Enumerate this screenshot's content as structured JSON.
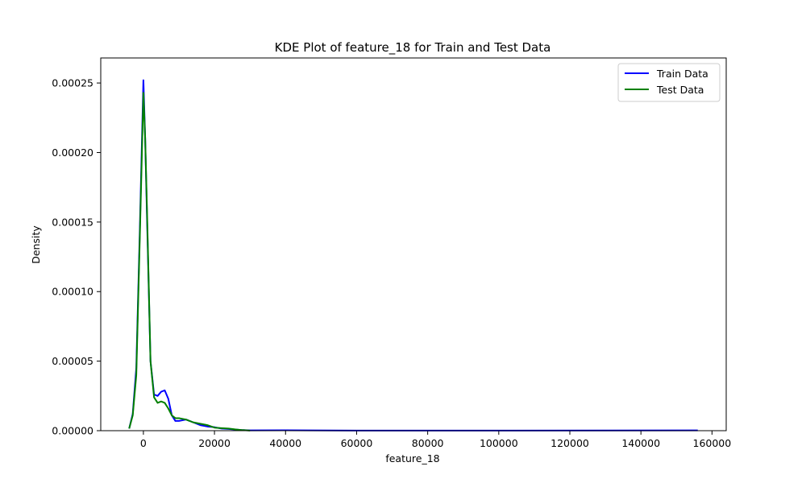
{
  "chart_data": {
    "type": "line",
    "title": "KDE Plot of feature_18 for Train and Test Data",
    "xlabel": "feature_18",
    "ylabel": "Density",
    "xlim": [
      -12000,
      164000
    ],
    "ylim": [
      0,
      0.000268
    ],
    "xticks": [
      0,
      20000,
      40000,
      60000,
      80000,
      100000,
      120000,
      140000,
      160000
    ],
    "xtick_labels": [
      "0",
      "20000",
      "40000",
      "60000",
      "80000",
      "100000",
      "120000",
      "140000",
      "160000"
    ],
    "yticks": [
      0,
      5e-05,
      0.0001,
      0.00015,
      0.0002,
      0.00025
    ],
    "ytick_labels": [
      "0.00000",
      "0.00005",
      "0.00010",
      "0.00015",
      "0.00020",
      "0.00025"
    ],
    "grid": false,
    "legend": {
      "position": "top-right"
    },
    "series": [
      {
        "name": "Train Data",
        "color": "#0000ff",
        "x": [
          -4000,
          -3000,
          -2000,
          -1000,
          0,
          500,
          1000,
          2000,
          3000,
          4000,
          5000,
          6000,
          7000,
          8000,
          9000,
          10000,
          12000,
          14000,
          16000,
          18000,
          20000,
          22000,
          24000,
          26000,
          28000,
          30000,
          40000,
          60000,
          100000,
          156000
        ],
        "y": [
          1.5e-06,
          1.2e-05,
          4.5e-05,
          0.000145,
          0.000252,
          0.00021,
          0.000155,
          5e-05,
          2.6e-05,
          2.5e-05,
          2.8e-05,
          2.9e-05,
          2.3e-05,
          1.1e-05,
          7e-06,
          7e-06,
          8e-06,
          6e-06,
          4e-06,
          3e-06,
          2.5e-06,
          1.5e-06,
          1.2e-06,
          8e-07,
          4e-07,
          2e-07,
          3e-07,
          1e-07,
          1e-07,
          2e-07
        ]
      },
      {
        "name": "Test Data",
        "color": "#008000",
        "x": [
          -4000,
          -3000,
          -2000,
          -1000,
          0,
          500,
          1000,
          2000,
          3000,
          4000,
          5000,
          6000,
          7000,
          8000,
          9000,
          10000,
          12000,
          14000,
          16000,
          18000,
          20000,
          22000,
          24000,
          26000,
          28000,
          30000
        ],
        "y": [
          1.5e-06,
          1.1e-05,
          4e-05,
          0.00014,
          0.000243,
          0.00021,
          0.00016,
          5e-05,
          2.4e-05,
          2e-05,
          2.1e-05,
          2e-05,
          1.6e-05,
          1.1e-05,
          9e-06,
          9e-06,
          8e-06,
          6e-06,
          5e-06,
          4e-06,
          2.2e-06,
          1.8e-06,
          1.5e-06,
          9e-07,
          4e-07,
          1e-07
        ]
      }
    ]
  }
}
